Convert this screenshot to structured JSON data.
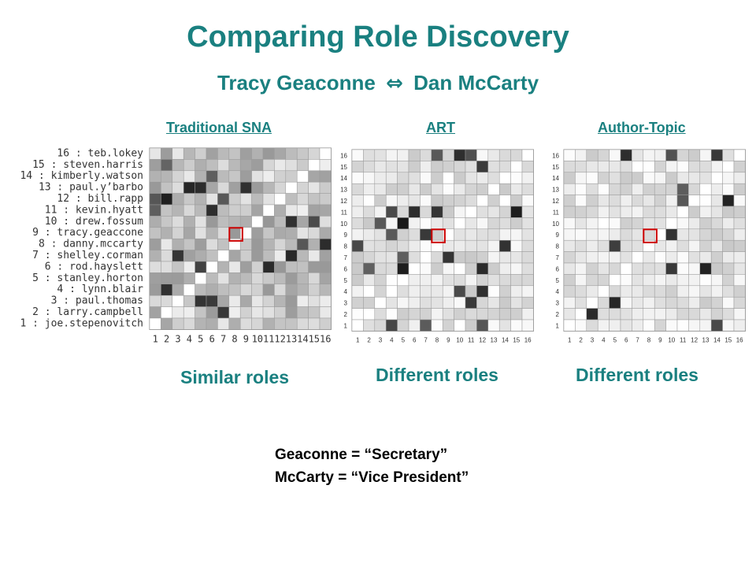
{
  "slide": {
    "title": "Comparing Role Discovery",
    "subtitle_left": "Tracy Geaconne",
    "subtitle_arrow": "⇔",
    "subtitle_right": "Dan McCarty"
  },
  "panels": [
    {
      "heading": "Traditional SNA",
      "caption": "Similar roles",
      "row_labels": [
        "16 : teb.lokey",
        "15 : steven.harris",
        "14 : kimberly.watson",
        "13 : paul.y’barbo",
        "12 : bill.rapp",
        "11 : kevin.hyatt",
        "10 : drew.fossum",
        "9 : tracy.geaccone",
        "8 : danny.mccarty",
        "7 : shelley.corman",
        "6 : rod.hayslett",
        "5 : stanley.horton",
        "4 : lynn.blair",
        "3 : paul.thomas",
        "2 : larry.campbell",
        "1 : joe.stepenovitch"
      ],
      "col_labels": [
        "1",
        "2",
        "3",
        "4",
        "5",
        "6",
        "7",
        "8",
        "9",
        "10",
        "11",
        "12",
        "13",
        "14",
        "15",
        "16"
      ],
      "highlighted_cell": {
        "row": 9,
        "col": 8
      }
    },
    {
      "heading": "ART",
      "caption": "Different roles",
      "row_labels": [
        "16",
        "15",
        "14",
        "13",
        "12",
        "11",
        "10",
        "9",
        "8",
        "7",
        "6",
        "5",
        "4",
        "3",
        "2",
        "1"
      ],
      "col_labels": [
        "1",
        "2",
        "3",
        "4",
        "5",
        "6",
        "7",
        "8",
        "9",
        "10",
        "11",
        "12",
        "13",
        "14",
        "15",
        "16"
      ],
      "highlighted_cell": {
        "row": 9,
        "col": 8
      }
    },
    {
      "heading": "Author-Topic",
      "caption": "Different roles",
      "row_labels": [
        "16",
        "15",
        "14",
        "13",
        "12",
        "11",
        "10",
        "9",
        "8",
        "7",
        "6",
        "5",
        "4",
        "3",
        "2",
        "1"
      ],
      "col_labels": [
        "1",
        "2",
        "3",
        "4",
        "5",
        "6",
        "7",
        "8",
        "9",
        "10",
        "11",
        "12",
        "13",
        "14",
        "15",
        "16"
      ],
      "highlighted_cell": {
        "row": 9,
        "col": 8
      }
    }
  ],
  "notes": {
    "line1": "Geaconne = “Secretary”",
    "line2": "McCarty = “Vice President”"
  }
}
